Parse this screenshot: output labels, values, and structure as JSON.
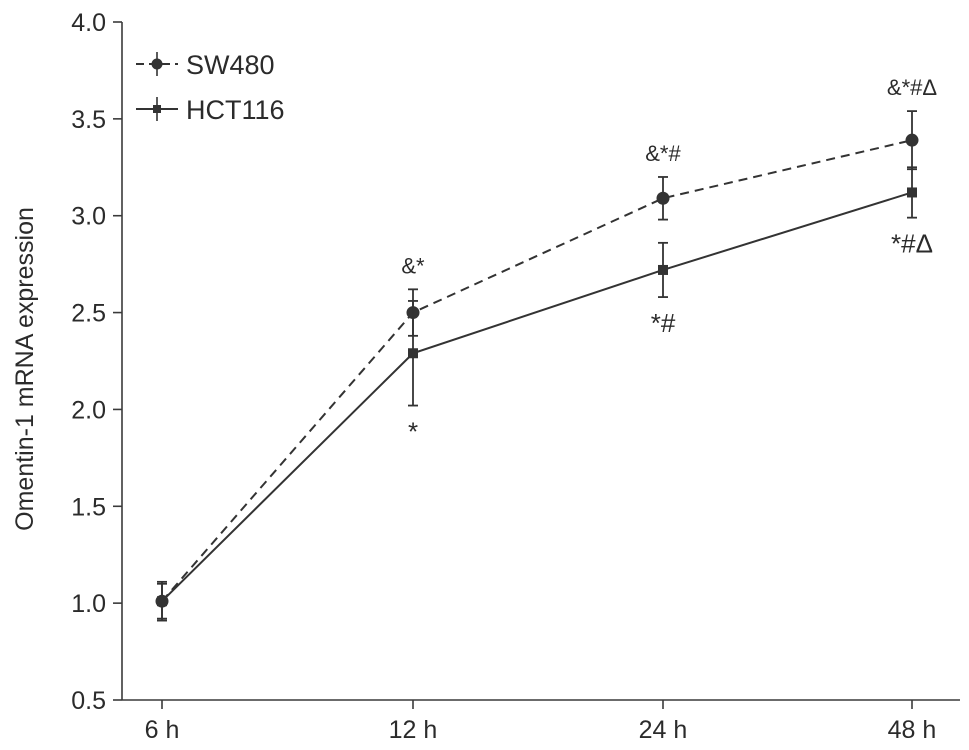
{
  "chart_data": {
    "type": "line",
    "title": "",
    "xlabel": "",
    "ylabel": "Omentin-1 mRNA expression",
    "categories": [
      "6 h",
      "12 h",
      "24 h",
      "48 h"
    ],
    "ylim": [
      0.5,
      4.0
    ],
    "yticks": [
      "0.5",
      "1.0",
      "1.5",
      "2.0",
      "2.5",
      "3.0",
      "3.5",
      "4.0"
    ],
    "grid": false,
    "legend_position": "top-left",
    "series": [
      {
        "name": "SW480",
        "line_style": "dashed",
        "marker": "circle",
        "color": "#333333",
        "values": [
          1.01,
          2.5,
          3.09,
          3.39
        ],
        "errors": [
          0.1,
          0.12,
          0.11,
          0.15
        ],
        "annotations": [
          "",
          "&*",
          "&*#",
          "&*#Δ"
        ]
      },
      {
        "name": "HCT116",
        "line_style": "solid",
        "marker": "square",
        "color": "#333333",
        "values": [
          1.01,
          2.29,
          2.72,
          3.12
        ],
        "errors": [
          0.09,
          0.27,
          0.14,
          0.13
        ],
        "annotations": [
          "",
          "*",
          "*#",
          "*#Δ"
        ]
      }
    ]
  }
}
